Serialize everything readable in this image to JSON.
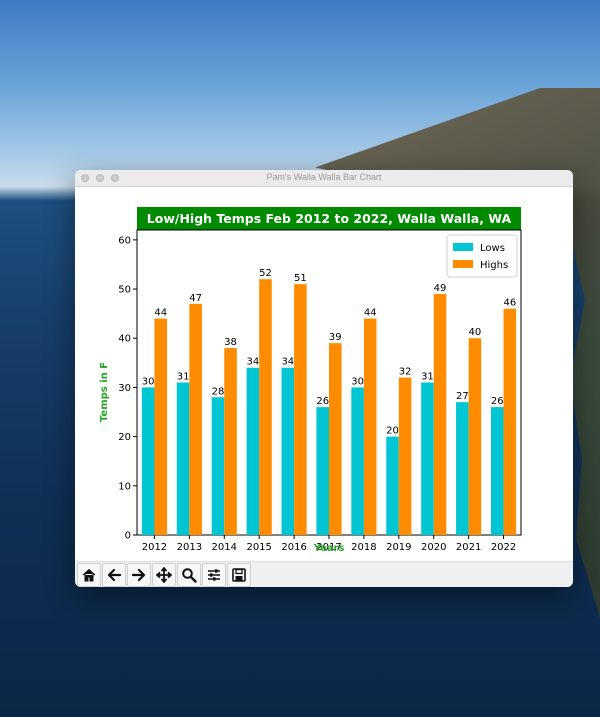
{
  "window": {
    "title": "Pam's Walla Walla Bar Chart"
  },
  "colors": {
    "lows": "#00c5d2",
    "highs": "#ff8c00",
    "title_bg": "#008a00",
    "axis_label": "#2aa42a"
  },
  "toolbar": {
    "buttons": [
      {
        "name": "home-icon"
      },
      {
        "name": "back-arrow-icon"
      },
      {
        "name": "forward-arrow-icon"
      },
      {
        "name": "pan-move-icon"
      },
      {
        "name": "zoom-magnifier-icon"
      },
      {
        "name": "configure-sliders-icon"
      },
      {
        "name": "save-disk-icon"
      }
    ]
  },
  "chart_data": {
    "type": "bar",
    "title": "Low/High Temps Feb 2012 to 2022, Walla Walla, WA",
    "xlabel": "Years",
    "ylabel": "Temps in F",
    "categories": [
      "2012",
      "2013",
      "2014",
      "2015",
      "2016",
      "2017",
      "2018",
      "2019",
      "2020",
      "2021",
      "2022"
    ],
    "series": [
      {
        "name": "Lows",
        "values": [
          30,
          31,
          28,
          34,
          34,
          26,
          30,
          20,
          31,
          27,
          26
        ]
      },
      {
        "name": "Highs",
        "values": [
          44,
          47,
          38,
          52,
          51,
          39,
          44,
          32,
          49,
          40,
          46
        ]
      }
    ],
    "ylim": [
      0,
      62
    ],
    "yticks": [
      0,
      10,
      20,
      30,
      40,
      50,
      60
    ],
    "grid": false,
    "legend": "top-right"
  }
}
